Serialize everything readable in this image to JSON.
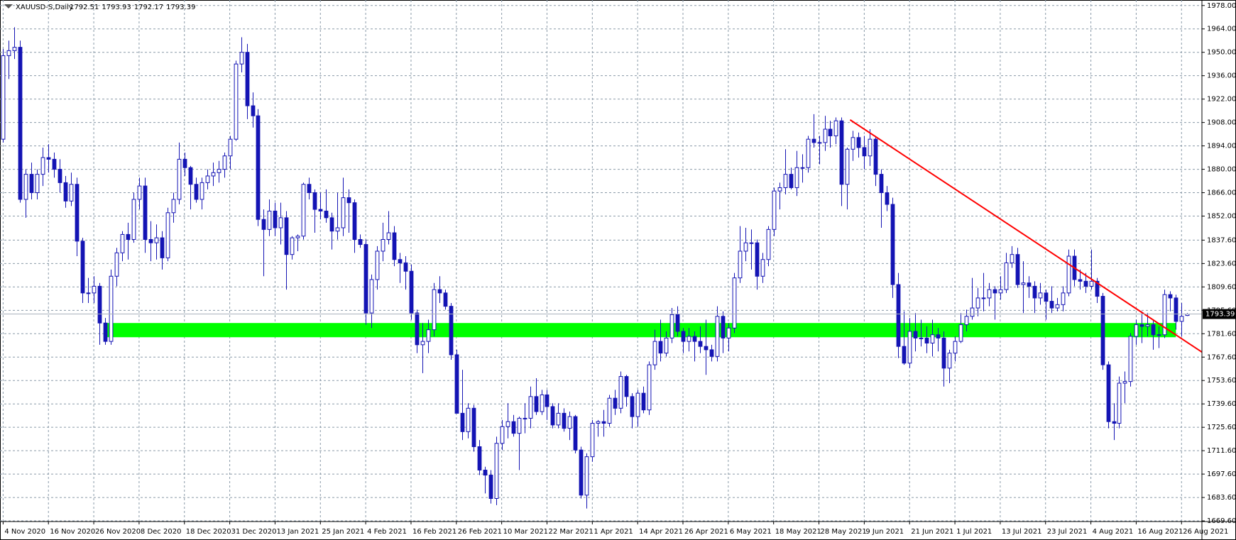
{
  "chart_data": {
    "type": "candlestick",
    "title": "XAUUSD-S,Daily",
    "color": "#1414b4",
    "grid": true,
    "ylim": [
      1669.2,
      1981.3
    ],
    "yticks": [
      {
        "value": 1978,
        "label": "1978.00"
      },
      {
        "value": 1964,
        "label": "1964.00"
      },
      {
        "value": 1950,
        "label": "1950.00"
      },
      {
        "value": 1936,
        "label": "1936.00"
      },
      {
        "value": 1922,
        "label": "1922.00"
      },
      {
        "value": 1908,
        "label": "1908.00"
      },
      {
        "value": 1894,
        "label": "1894.00"
      },
      {
        "value": 1880,
        "label": "1880.00"
      },
      {
        "value": 1866,
        "label": "1866.00"
      },
      {
        "value": 1852,
        "label": "1852.00"
      },
      {
        "value": 1837.6,
        "label": "1837.60"
      },
      {
        "value": 1823.6,
        "label": "1823.60"
      },
      {
        "value": 1809.6,
        "label": "1809.60"
      },
      {
        "value": 1795.6,
        "label": "1795.60"
      },
      {
        "value": 1781.6,
        "label": "1781.60"
      },
      {
        "value": 1767.6,
        "label": "1767.60"
      },
      {
        "value": 1753.6,
        "label": "1753.60"
      },
      {
        "value": 1739.6,
        "label": "1739.60"
      },
      {
        "value": 1725.6,
        "label": "1725.60"
      },
      {
        "value": 1711.6,
        "label": "1711.60"
      },
      {
        "value": 1697.6,
        "label": "1697.60"
      },
      {
        "value": 1683.6,
        "label": "1683.60"
      },
      {
        "value": 1669.6,
        "label": "1669.60"
      }
    ],
    "xlim": [
      -0.55,
      211.6
    ],
    "xticks": [
      {
        "value": 0,
        "label": "4 Nov 2020"
      },
      {
        "value": 8,
        "label": "16 Nov 2020"
      },
      {
        "value": 16,
        "label": "26 Nov 2020"
      },
      {
        "value": 24,
        "label": "8 Dec 2020"
      },
      {
        "value": 32,
        "label": "18 Dec 2020"
      },
      {
        "value": 40,
        "label": "31 Dec 2020"
      },
      {
        "value": 48,
        "label": "13 Jan 2021"
      },
      {
        "value": 56,
        "label": "25 Jan 2021"
      },
      {
        "value": 64,
        "label": "4 Feb 2021"
      },
      {
        "value": 72,
        "label": "16 Feb 2021"
      },
      {
        "value": 80,
        "label": "26 Feb 2021"
      },
      {
        "value": 88,
        "label": "10 Mar 2021"
      },
      {
        "value": 96,
        "label": "22 Mar 2021"
      },
      {
        "value": 104,
        "label": "1 Apr 2021"
      },
      {
        "value": 112,
        "label": "14 Apr 2021"
      },
      {
        "value": 120,
        "label": "26 Apr 2021"
      },
      {
        "value": 128,
        "label": "6 May 2021"
      },
      {
        "value": 136,
        "label": "18 May 2021"
      },
      {
        "value": 144,
        "label": "28 May 2021"
      },
      {
        "value": 152,
        "label": "9 Jun 2021"
      },
      {
        "value": 160,
        "label": "21 Jun 2021"
      },
      {
        "value": 168,
        "label": "1 Jul 2021"
      },
      {
        "value": 176,
        "label": "13 Jul 2021"
      },
      {
        "value": 184,
        "label": "23 Jul 2021"
      },
      {
        "value": 192,
        "label": "4 Aug 2021"
      },
      {
        "value": 200,
        "label": "16 Aug 2021"
      },
      {
        "value": 208,
        "label": "26 Aug 2021"
      }
    ],
    "zone": {
      "color": "#00ff00",
      "x": [
        18,
        207
      ],
      "y": [
        1779.5,
        1788
      ]
    },
    "trendline": {
      "color": "#ff0000",
      "x": [
        149.5,
        211.6
      ],
      "y": [
        1909.6,
        1770.6
      ]
    },
    "ohlc": [
      [
        1898,
        1952,
        1896,
        1948
      ],
      [
        1948,
        1957,
        1934,
        1951
      ],
      [
        1951,
        1965,
        1946,
        1953
      ],
      [
        1953,
        1957,
        1860,
        1862
      ],
      [
        1862,
        1880,
        1851,
        1877
      ],
      [
        1877,
        1884,
        1862,
        1866
      ],
      [
        1866,
        1880,
        1862,
        1877
      ],
      [
        1877,
        1893,
        1870,
        1887
      ],
      [
        1887,
        1895,
        1878,
        1886
      ],
      [
        1886,
        1890,
        1875,
        1880
      ],
      [
        1880,
        1886,
        1866,
        1872
      ],
      [
        1872,
        1876,
        1857,
        1861
      ],
      [
        1861,
        1878,
        1858,
        1871
      ],
      [
        1871,
        1875,
        1828,
        1837
      ],
      [
        1837,
        1839,
        1800,
        1806
      ],
      [
        1806,
        1815,
        1800,
        1806
      ],
      [
        1806,
        1816,
        1800,
        1810
      ],
      [
        1810,
        1812,
        1775,
        1788
      ],
      [
        1788,
        1791,
        1775,
        1777
      ],
      [
        1777,
        1820,
        1775,
        1816
      ],
      [
        1816,
        1833,
        1810,
        1830
      ],
      [
        1830,
        1843,
        1825,
        1841
      ],
      [
        1841,
        1848,
        1826,
        1838
      ],
      [
        1838,
        1866,
        1836,
        1862
      ],
      [
        1862,
        1875,
        1856,
        1870
      ],
      [
        1870,
        1875,
        1830,
        1838
      ],
      [
        1838,
        1849,
        1825,
        1836
      ],
      [
        1836,
        1847,
        1826,
        1839
      ],
      [
        1839,
        1843,
        1820,
        1827
      ],
      [
        1827,
        1857,
        1825,
        1854
      ],
      [
        1854,
        1866,
        1848,
        1862
      ],
      [
        1862,
        1896,
        1859,
        1886
      ],
      [
        1886,
        1890,
        1876,
        1881
      ],
      [
        1881,
        1882,
        1856,
        1871
      ],
      [
        1871,
        1875,
        1860,
        1862
      ],
      [
        1862,
        1875,
        1856,
        1872
      ],
      [
        1872,
        1880,
        1868,
        1876
      ],
      [
        1876,
        1884,
        1870,
        1878
      ],
      [
        1878,
        1885,
        1872,
        1880
      ],
      [
        1880,
        1890,
        1875,
        1888
      ],
      [
        1888,
        1900,
        1880,
        1898
      ],
      [
        1898,
        1945,
        1897,
        1943
      ],
      [
        1943,
        1959,
        1938,
        1950
      ],
      [
        1950,
        1955,
        1910,
        1918
      ],
      [
        1918,
        1926,
        1905,
        1912
      ],
      [
        1912,
        1916,
        1846,
        1850
      ],
      [
        1850,
        1856,
        1816,
        1844
      ],
      [
        1844,
        1862,
        1840,
        1855
      ],
      [
        1855,
        1860,
        1840,
        1845
      ],
      [
        1845,
        1860,
        1835,
        1851
      ],
      [
        1851,
        1855,
        1808,
        1829
      ],
      [
        1829,
        1840,
        1826,
        1839
      ],
      [
        1839,
        1841,
        1831,
        1840
      ],
      [
        1840,
        1872,
        1838,
        1871
      ],
      [
        1871,
        1875,
        1862,
        1866
      ],
      [
        1866,
        1868,
        1842,
        1856
      ],
      [
        1856,
        1866,
        1850,
        1855
      ],
      [
        1855,
        1868,
        1848,
        1851
      ],
      [
        1851,
        1854,
        1832,
        1843
      ],
      [
        1843,
        1866,
        1838,
        1845
      ],
      [
        1845,
        1875,
        1840,
        1863
      ],
      [
        1863,
        1868,
        1842,
        1860
      ],
      [
        1860,
        1862,
        1830,
        1838
      ],
      [
        1838,
        1841,
        1833,
        1835
      ],
      [
        1835,
        1838,
        1787,
        1794
      ],
      [
        1794,
        1817,
        1785,
        1814
      ],
      [
        1814,
        1834,
        1808,
        1831
      ],
      [
        1831,
        1848,
        1825,
        1838
      ],
      [
        1838,
        1855,
        1835,
        1842
      ],
      [
        1842,
        1846,
        1822,
        1826
      ],
      [
        1826,
        1830,
        1812,
        1824
      ],
      [
        1824,
        1828,
        1808,
        1819
      ],
      [
        1819,
        1823,
        1790,
        1794
      ],
      [
        1794,
        1796,
        1770,
        1775
      ],
      [
        1775,
        1788,
        1758,
        1777
      ],
      [
        1777,
        1790,
        1770,
        1784
      ],
      [
        1784,
        1812,
        1780,
        1808
      ],
      [
        1808,
        1816,
        1800,
        1806
      ],
      [
        1806,
        1808,
        1796,
        1798
      ],
      [
        1798,
        1800,
        1766,
        1769
      ],
      [
        1769,
        1772,
        1734,
        1734
      ],
      [
        1734,
        1760,
        1718,
        1723
      ],
      [
        1723,
        1740,
        1719,
        1737
      ],
      [
        1737,
        1739,
        1711,
        1714
      ],
      [
        1714,
        1718,
        1697,
        1700
      ],
      [
        1700,
        1702,
        1686,
        1697
      ],
      [
        1697,
        1700,
        1680,
        1683
      ],
      [
        1683,
        1720,
        1679,
        1716
      ],
      [
        1716,
        1730,
        1712,
        1726
      ],
      [
        1726,
        1740,
        1719,
        1729
      ],
      [
        1729,
        1733,
        1720,
        1722
      ],
      [
        1722,
        1732,
        1700,
        1731
      ],
      [
        1731,
        1740,
        1722,
        1731
      ],
      [
        1731,
        1750,
        1725,
        1744
      ],
      [
        1744,
        1755,
        1733,
        1735
      ],
      [
        1735,
        1748,
        1733,
        1745
      ],
      [
        1745,
        1748,
        1730,
        1738
      ],
      [
        1738,
        1740,
        1725,
        1727
      ],
      [
        1727,
        1740,
        1725,
        1734
      ],
      [
        1734,
        1737,
        1723,
        1725
      ],
      [
        1725,
        1735,
        1718,
        1732
      ],
      [
        1732,
        1733,
        1710,
        1712
      ],
      [
        1712,
        1714,
        1683,
        1685
      ],
      [
        1685,
        1710,
        1677,
        1708
      ],
      [
        1708,
        1730,
        1705,
        1728
      ],
      [
        1728,
        1730,
        1720,
        1729
      ],
      [
        1729,
        1736,
        1720,
        1728
      ],
      [
        1728,
        1745,
        1726,
        1743
      ],
      [
        1743,
        1748,
        1733,
        1737
      ],
      [
        1737,
        1759,
        1734,
        1756
      ],
      [
        1756,
        1757,
        1738,
        1744
      ],
      [
        1744,
        1746,
        1725,
        1732
      ],
      [
        1732,
        1748,
        1726,
        1746
      ],
      [
        1746,
        1750,
        1734,
        1736
      ],
      [
        1736,
        1765,
        1733,
        1763
      ],
      [
        1763,
        1784,
        1760,
        1777
      ],
      [
        1777,
        1790,
        1765,
        1770
      ],
      [
        1770,
        1783,
        1768,
        1779
      ],
      [
        1779,
        1797,
        1776,
        1793
      ],
      [
        1793,
        1798,
        1780,
        1783
      ],
      [
        1783,
        1785,
        1770,
        1777
      ],
      [
        1777,
        1785,
        1771,
        1780
      ],
      [
        1780,
        1783,
        1765,
        1777
      ],
      [
        1777,
        1786,
        1770,
        1774
      ],
      [
        1774,
        1790,
        1757,
        1772
      ],
      [
        1772,
        1775,
        1765,
        1768
      ],
      [
        1768,
        1798,
        1765,
        1792
      ],
      [
        1792,
        1795,
        1770,
        1779
      ],
      [
        1779,
        1788,
        1771,
        1785
      ],
      [
        1785,
        1818,
        1782,
        1815
      ],
      [
        1815,
        1846,
        1812,
        1831
      ],
      [
        1831,
        1845,
        1825,
        1836
      ],
      [
        1836,
        1844,
        1820,
        1836
      ],
      [
        1836,
        1838,
        1808,
        1816
      ],
      [
        1816,
        1830,
        1812,
        1826
      ],
      [
        1826,
        1846,
        1822,
        1844
      ],
      [
        1844,
        1869,
        1840,
        1867
      ],
      [
        1867,
        1872,
        1856,
        1869
      ],
      [
        1869,
        1892,
        1865,
        1877
      ],
      [
        1877,
        1881,
        1868,
        1869
      ],
      [
        1869,
        1891,
        1864,
        1881
      ],
      [
        1881,
        1889,
        1872,
        1881
      ],
      [
        1881,
        1900,
        1878,
        1898
      ],
      [
        1898,
        1913,
        1893,
        1896
      ],
      [
        1896,
        1900,
        1883,
        1896
      ],
      [
        1896,
        1912,
        1891,
        1904
      ],
      [
        1904,
        1909,
        1893,
        1900
      ],
      [
        1900,
        1911,
        1895,
        1909
      ],
      [
        1909,
        1911,
        1858,
        1871
      ],
      [
        1871,
        1893,
        1856,
        1892
      ],
      [
        1892,
        1903,
        1885,
        1899
      ],
      [
        1899,
        1902,
        1887,
        1893
      ],
      [
        1893,
        1900,
        1880,
        1888
      ],
      [
        1888,
        1904,
        1882,
        1898
      ],
      [
        1898,
        1900,
        1870,
        1877
      ],
      [
        1877,
        1880,
        1845,
        1866
      ],
      [
        1866,
        1870,
        1855,
        1859
      ],
      [
        1859,
        1863,
        1803,
        1811
      ],
      [
        1811,
        1818,
        1767,
        1774
      ],
      [
        1774,
        1795,
        1763,
        1764
      ],
      [
        1764,
        1791,
        1761,
        1783
      ],
      [
        1783,
        1794,
        1771,
        1779
      ],
      [
        1779,
        1790,
        1774,
        1779
      ],
      [
        1779,
        1786,
        1770,
        1776
      ],
      [
        1776,
        1790,
        1768,
        1781
      ],
      [
        1781,
        1785,
        1771,
        1779
      ],
      [
        1779,
        1783,
        1750,
        1761
      ],
      [
        1761,
        1772,
        1752,
        1770
      ],
      [
        1770,
        1780,
        1765,
        1777
      ],
      [
        1777,
        1794,
        1776,
        1787
      ],
      [
        1787,
        1796,
        1783,
        1792
      ],
      [
        1792,
        1815,
        1790,
        1797
      ],
      [
        1797,
        1809,
        1792,
        1803
      ],
      [
        1803,
        1818,
        1795,
        1803
      ],
      [
        1803,
        1812,
        1798,
        1808
      ],
      [
        1808,
        1810,
        1790,
        1806
      ],
      [
        1806,
        1816,
        1802,
        1808
      ],
      [
        1808,
        1830,
        1806,
        1824
      ],
      [
        1824,
        1834,
        1821,
        1829
      ],
      [
        1829,
        1833,
        1809,
        1811
      ],
      [
        1811,
        1825,
        1794,
        1812
      ],
      [
        1812,
        1816,
        1803,
        1810
      ],
      [
        1810,
        1813,
        1794,
        1803
      ],
      [
        1803,
        1812,
        1799,
        1806
      ],
      [
        1806,
        1808,
        1790,
        1801
      ],
      [
        1801,
        1810,
        1794,
        1797
      ],
      [
        1797,
        1803,
        1795,
        1799
      ],
      [
        1799,
        1810,
        1795,
        1806
      ],
      [
        1806,
        1832,
        1804,
        1828
      ],
      [
        1828,
        1832,
        1810,
        1814
      ],
      [
        1814,
        1820,
        1808,
        1813
      ],
      [
        1813,
        1818,
        1806,
        1810
      ],
      [
        1810,
        1832,
        1808,
        1813
      ],
      [
        1813,
        1815,
        1800,
        1804
      ],
      [
        1804,
        1806,
        1760,
        1763
      ],
      [
        1763,
        1765,
        1725,
        1729
      ],
      [
        1729,
        1740,
        1718,
        1728
      ],
      [
        1728,
        1756,
        1725,
        1752
      ],
      [
        1752,
        1759,
        1740,
        1753
      ],
      [
        1753,
        1782,
        1750,
        1780
      ],
      [
        1780,
        1790,
        1775,
        1787
      ],
      [
        1787,
        1795,
        1776,
        1786
      ],
      [
        1786,
        1794,
        1780,
        1787
      ],
      [
        1787,
        1790,
        1772,
        1781
      ],
      [
        1781,
        1786,
        1773,
        1781
      ],
      [
        1781,
        1808,
        1779,
        1805
      ],
      [
        1805,
        1807,
        1795,
        1803
      ],
      [
        1803,
        1805,
        1784,
        1789
      ],
      [
        1789,
        1800,
        1780,
        1792
      ],
      [
        1792.51,
        1793.93,
        1792.17,
        1793.39
      ]
    ]
  }
}
